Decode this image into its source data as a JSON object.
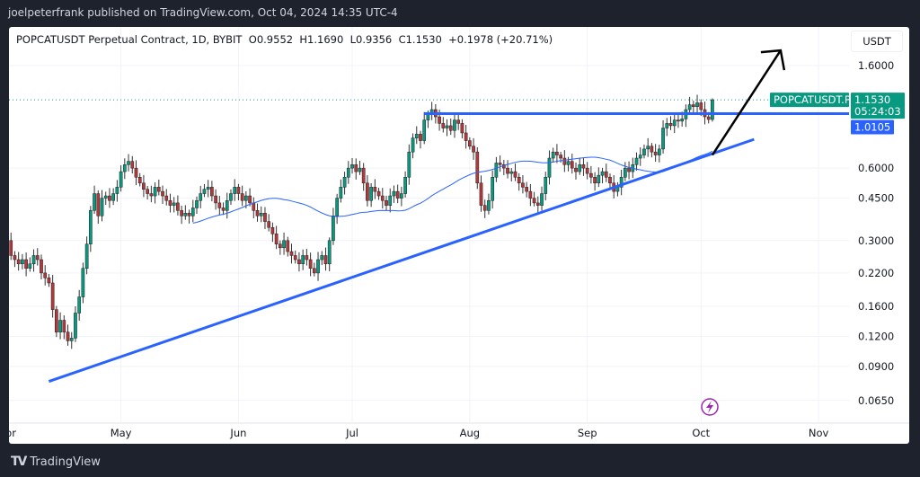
{
  "header": {
    "published": "joelpeterfrank published on TradingView.com, Oct 04, 2024 14:35 UTC-4"
  },
  "legend": {
    "symbol": "POPCATUSDT Perpetual Contract, 1D, BYBIT",
    "open": "O0.9552",
    "high": "H1.1690",
    "low": "L0.9356",
    "close": "C1.1530",
    "change": "+0.1978 (+20.71%)"
  },
  "price_axis": {
    "unit": "USDT"
  },
  "badges": {
    "symbol_label": "POPCATUSDT.P",
    "last_price": "1.1530",
    "countdown": "05:24:03",
    "level_price": "1.0105"
  },
  "footer": {
    "brand": "TradingView"
  },
  "colors": {
    "up": "#089981",
    "down": "#b2383b",
    "trendline": "#2962ff",
    "ma": "#2962ff",
    "last_price": "#089981",
    "level": "#2962ff",
    "background": "#1e222d"
  },
  "icons": {
    "logo": "tradingview-logo",
    "event": "lightning-icon"
  },
  "chart_data": {
    "type": "candlestick",
    "title": "POPCATUSDT Perpetual Contract, 1D, BYBIT",
    "scale": "log",
    "ylim": [
      0.055,
      2.0
    ],
    "y_ticks": [
      "1.6000",
      "0.6000",
      "0.4500",
      "0.3000",
      "0.2200",
      "0.1600",
      "0.1200",
      "0.0900",
      "0.0650"
    ],
    "x_ticks": [
      {
        "label": "Apr",
        "date": "2024-04-01"
      },
      {
        "label": "May",
        "date": "2024-05-01"
      },
      {
        "label": "Jun",
        "date": "2024-06-01"
      },
      {
        "label": "Jul",
        "date": "2024-07-01"
      },
      {
        "label": "Aug",
        "date": "2024-08-01"
      },
      {
        "label": "Sep",
        "date": "2024-09-01"
      },
      {
        "label": "Oct",
        "date": "2024-10-01"
      },
      {
        "label": "Nov",
        "date": "2024-11-01"
      }
    ],
    "xlim": [
      "2024-04-01",
      "2024-11-15"
    ],
    "grid": true,
    "first_date": "2024-04-01",
    "closes": [
      0.3,
      0.26,
      0.25,
      0.24,
      0.25,
      0.23,
      0.24,
      0.26,
      0.25,
      0.22,
      0.21,
      0.2,
      0.155,
      0.125,
      0.14,
      0.125,
      0.115,
      0.118,
      0.15,
      0.175,
      0.23,
      0.29,
      0.4,
      0.47,
      0.38,
      0.45,
      0.46,
      0.44,
      0.47,
      0.5,
      0.58,
      0.62,
      0.64,
      0.6,
      0.55,
      0.52,
      0.49,
      0.47,
      0.46,
      0.5,
      0.48,
      0.46,
      0.44,
      0.42,
      0.43,
      0.4,
      0.38,
      0.39,
      0.38,
      0.41,
      0.44,
      0.47,
      0.49,
      0.5,
      0.46,
      0.43,
      0.41,
      0.4,
      0.44,
      0.47,
      0.5,
      0.47,
      0.44,
      0.46,
      0.43,
      0.4,
      0.38,
      0.39,
      0.36,
      0.34,
      0.32,
      0.29,
      0.28,
      0.3,
      0.27,
      0.26,
      0.25,
      0.24,
      0.26,
      0.25,
      0.23,
      0.22,
      0.25,
      0.26,
      0.24,
      0.3,
      0.38,
      0.45,
      0.5,
      0.55,
      0.6,
      0.62,
      0.58,
      0.6,
      0.52,
      0.44,
      0.5,
      0.48,
      0.46,
      0.44,
      0.42,
      0.46,
      0.48,
      0.45,
      0.47,
      0.55,
      0.7,
      0.8,
      0.83,
      0.78,
      0.95,
      1.0,
      1.05,
      0.98,
      0.92,
      0.88,
      0.9,
      0.86,
      0.95,
      0.92,
      0.84,
      0.78,
      0.74,
      0.7,
      0.52,
      0.42,
      0.4,
      0.44,
      0.55,
      0.63,
      0.62,
      0.6,
      0.57,
      0.58,
      0.55,
      0.52,
      0.5,
      0.48,
      0.45,
      0.43,
      0.42,
      0.47,
      0.55,
      0.66,
      0.7,
      0.68,
      0.66,
      0.62,
      0.64,
      0.6,
      0.58,
      0.62,
      0.6,
      0.57,
      0.55,
      0.52,
      0.56,
      0.58,
      0.55,
      0.52,
      0.48,
      0.5,
      0.55,
      0.6,
      0.58,
      0.62,
      0.66,
      0.68,
      0.72,
      0.74,
      0.7,
      0.68,
      0.72,
      0.88,
      0.92,
      0.9,
      0.95,
      0.94,
      0.96,
      1.05,
      1.1,
      1.08,
      1.12,
      1.05,
      0.98,
      0.9552,
      1.153
    ],
    "last_candle": {
      "date": "2024-10-04",
      "open": 0.9552,
      "high": 1.169,
      "low": 0.9356,
      "close": 1.153
    },
    "moving_average": {
      "type": "SMA",
      "period": 50
    },
    "drawings": {
      "support_trendline": {
        "from": {
          "date": "2024-04-12",
          "price": 0.078
        },
        "to": {
          "date": "2024-10-15",
          "price": 0.79
        }
      },
      "resistance_level": {
        "from_date": "2024-07-20",
        "price": 1.0105
      },
      "arrow": {
        "from": {
          "date": "2024-10-04",
          "price": 0.68
        },
        "to": {
          "date": "2024-10-22",
          "price": 1.85
        }
      },
      "last_price_line": 1.153
    }
  }
}
